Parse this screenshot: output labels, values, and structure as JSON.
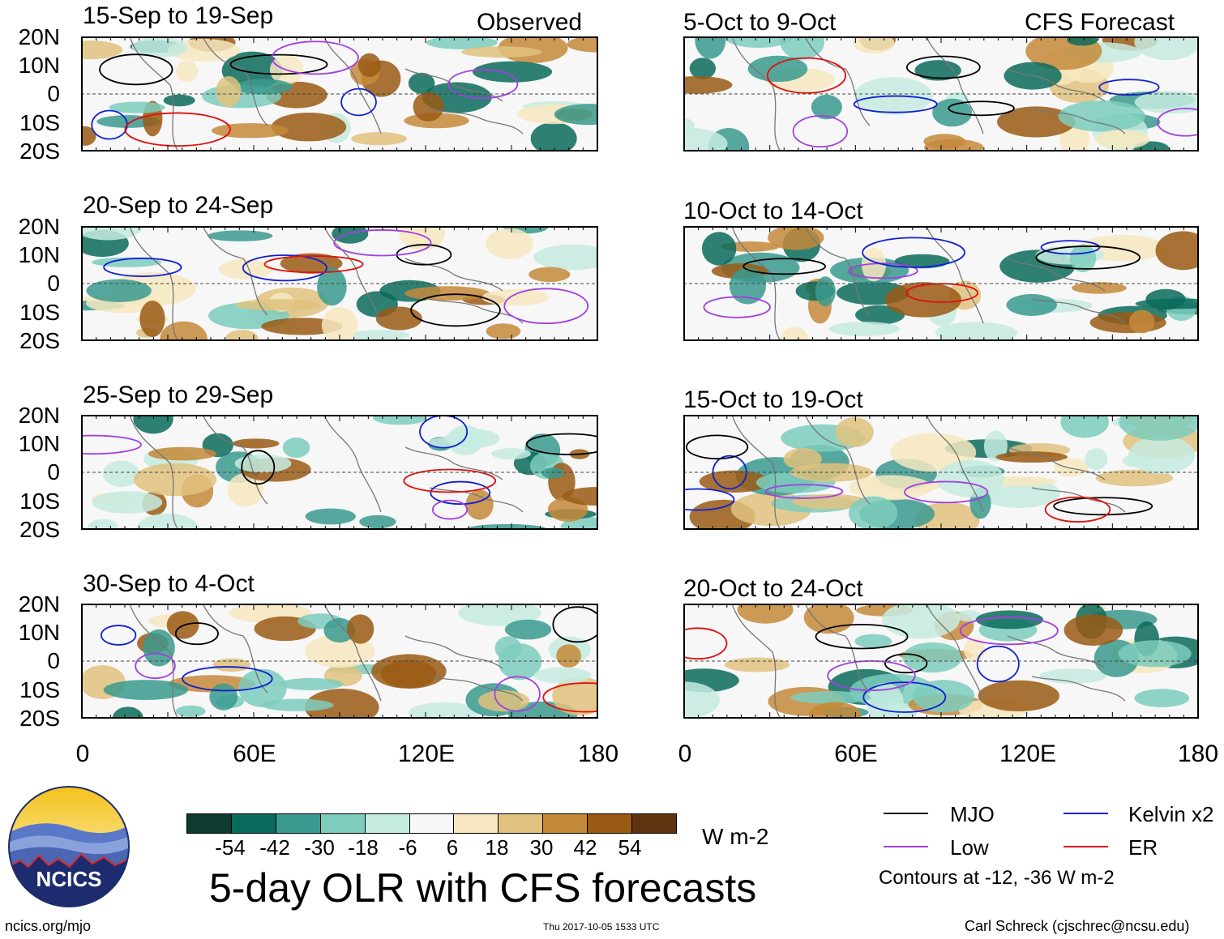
{
  "panels": [
    {
      "title": "15-Sep to 19-Sep",
      "tag": "Observed"
    },
    {
      "title": "20-Sep to 24-Sep"
    },
    {
      "title": "25-Sep to 29-Sep"
    },
    {
      "title": "30-Sep to 4-Oct"
    },
    {
      "title": "5-Oct to 9-Oct",
      "tag": "CFS Forecast"
    },
    {
      "title": "10-Oct to 14-Oct"
    },
    {
      "title": "15-Oct to 19-Oct"
    },
    {
      "title": "20-Oct to 24-Oct"
    }
  ],
  "lat_labels": [
    "20N",
    "10N",
    "0",
    "10S",
    "20S"
  ],
  "lon_labels": [
    "0",
    "60E",
    "120E",
    "180"
  ],
  "colorbar": {
    "colors": [
      "#0d3b30",
      "#0b6b5c",
      "#3a9a8e",
      "#7ccdbd",
      "#c6ebe0",
      "#f7f7f7",
      "#f6e7c0",
      "#e0c27e",
      "#c48a3a",
      "#9a5a14",
      "#5e3510"
    ],
    "labels": [
      "-54",
      "-42",
      "-30",
      "-18",
      "-6",
      "6",
      "18",
      "30",
      "42",
      "54"
    ],
    "units": "W m-2"
  },
  "main_title": "5-day OLR with CFS forecasts",
  "legend": {
    "items": [
      {
        "label": "MJO",
        "color": "#000000"
      },
      {
        "label": "Kelvin x2",
        "color": "#1020d0"
      },
      {
        "label": "Low",
        "color": "#a040e0"
      },
      {
        "label": "ER",
        "color": "#e01010"
      }
    ],
    "note": "Contours at -12, -36 W m-2"
  },
  "logo_text": "NCICS",
  "footer": {
    "left": "ncics.org/mjo",
    "center": "Thu 2017-10-05 1533 UTC",
    "right": "Carl Schreck (cjschrec@ncsu.edu)"
  }
}
